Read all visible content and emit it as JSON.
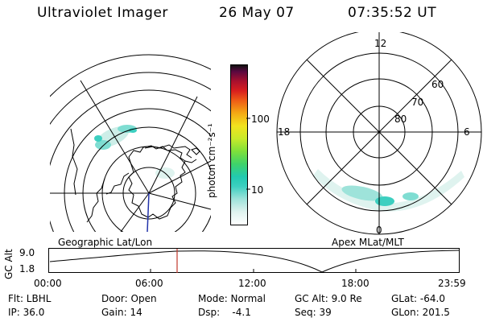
{
  "header": {
    "instrument": "Ultraviolet Imager",
    "date": "26 May 07",
    "time": "07:35:52 UT"
  },
  "left_map": {
    "label": "Geographic Lat/Lon"
  },
  "colorbar": {
    "unit_label": "photon cm⁻²s⁻¹",
    "ticks": [
      "100",
      "10"
    ]
  },
  "right_map": {
    "label": "Apex MLat/MLT",
    "mlt_labels": {
      "top": "12",
      "left": "18",
      "right": "6",
      "bottom": "0"
    },
    "lat_labels": [
      "60",
      "70",
      "80"
    ]
  },
  "altitude_plot": {
    "ylabel": "GC Alt",
    "yticks": [
      "9.0",
      "1.8"
    ],
    "xticks": [
      "00:00",
      "06:00",
      "12:00",
      "18:00",
      "23:59"
    ],
    "marker_time": "07:35:52"
  },
  "status": {
    "flt": "Flt: LBHL",
    "ip": "IP: 36.0",
    "door": "Door: Open",
    "gain": "Gain: 14",
    "mode": "Mode: Normal",
    "dsp": "Dsp:    -4.1",
    "gc_alt": "GC Alt: 9.0 Re",
    "seq": "Seq: 39",
    "glat": "GLat: -64.0",
    "glon": "GLon: 201.5"
  },
  "colors": {
    "aurora_light": "#cdeee8",
    "aurora_mid": "#7fddd2",
    "aurora_strong": "#3ccfc0",
    "marker": "#c0392b",
    "meridian": "#2233aa"
  }
}
